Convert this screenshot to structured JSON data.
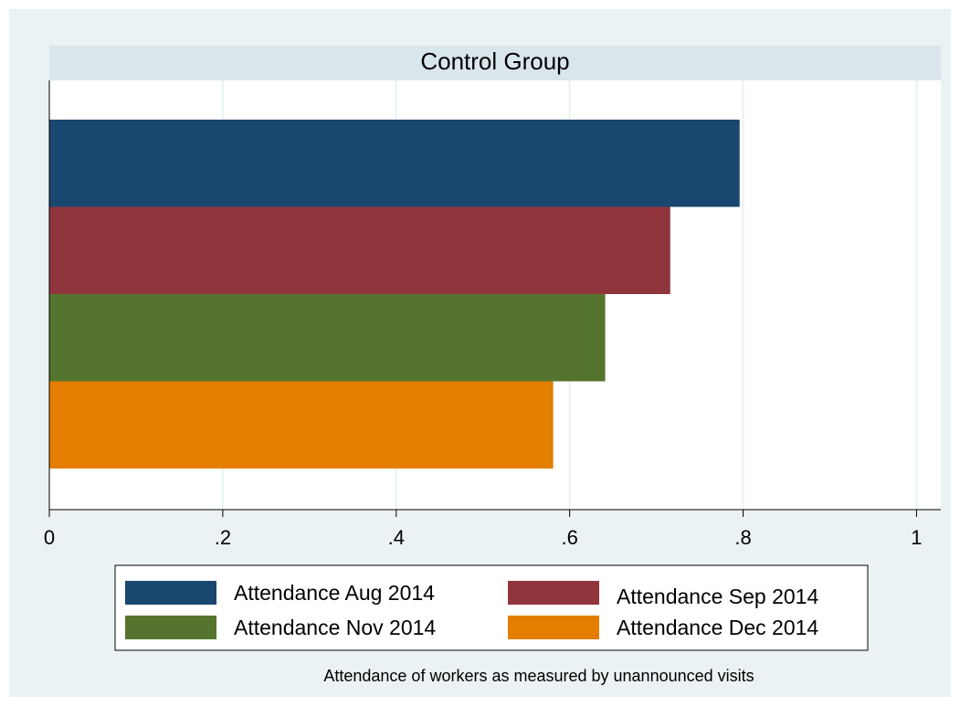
{
  "chart_data": {
    "type": "bar",
    "orientation": "horizontal",
    "panel_title": "Control Group",
    "note": "Attendance of workers as measured by unannounced visits",
    "categories": [
      null
    ],
    "series": [
      {
        "name": "Attendance Aug 2014",
        "color": "#1a476f",
        "values": [
          0.796
        ]
      },
      {
        "name": "Attendance Sep 2014",
        "color": "#90353b",
        "values": [
          0.716
        ]
      },
      {
        "name": "Attendance Nov 2014",
        "color": "#55752f",
        "values": [
          0.641
        ]
      },
      {
        "name": "Attendance Dec 2014",
        "color": "#e37e00",
        "values": [
          0.581
        ]
      }
    ],
    "xlim": [
      0,
      1.028
    ],
    "xticks": [
      0,
      {
        "value": 0.2,
        "label": ".2"
      },
      {
        "value": 0.4,
        "label": ".4"
      },
      {
        "value": 0.6,
        "label": ".6"
      },
      {
        "value": 0.8,
        "label": ".8"
      },
      1
    ],
    "grid": true,
    "legend": "bottom"
  }
}
